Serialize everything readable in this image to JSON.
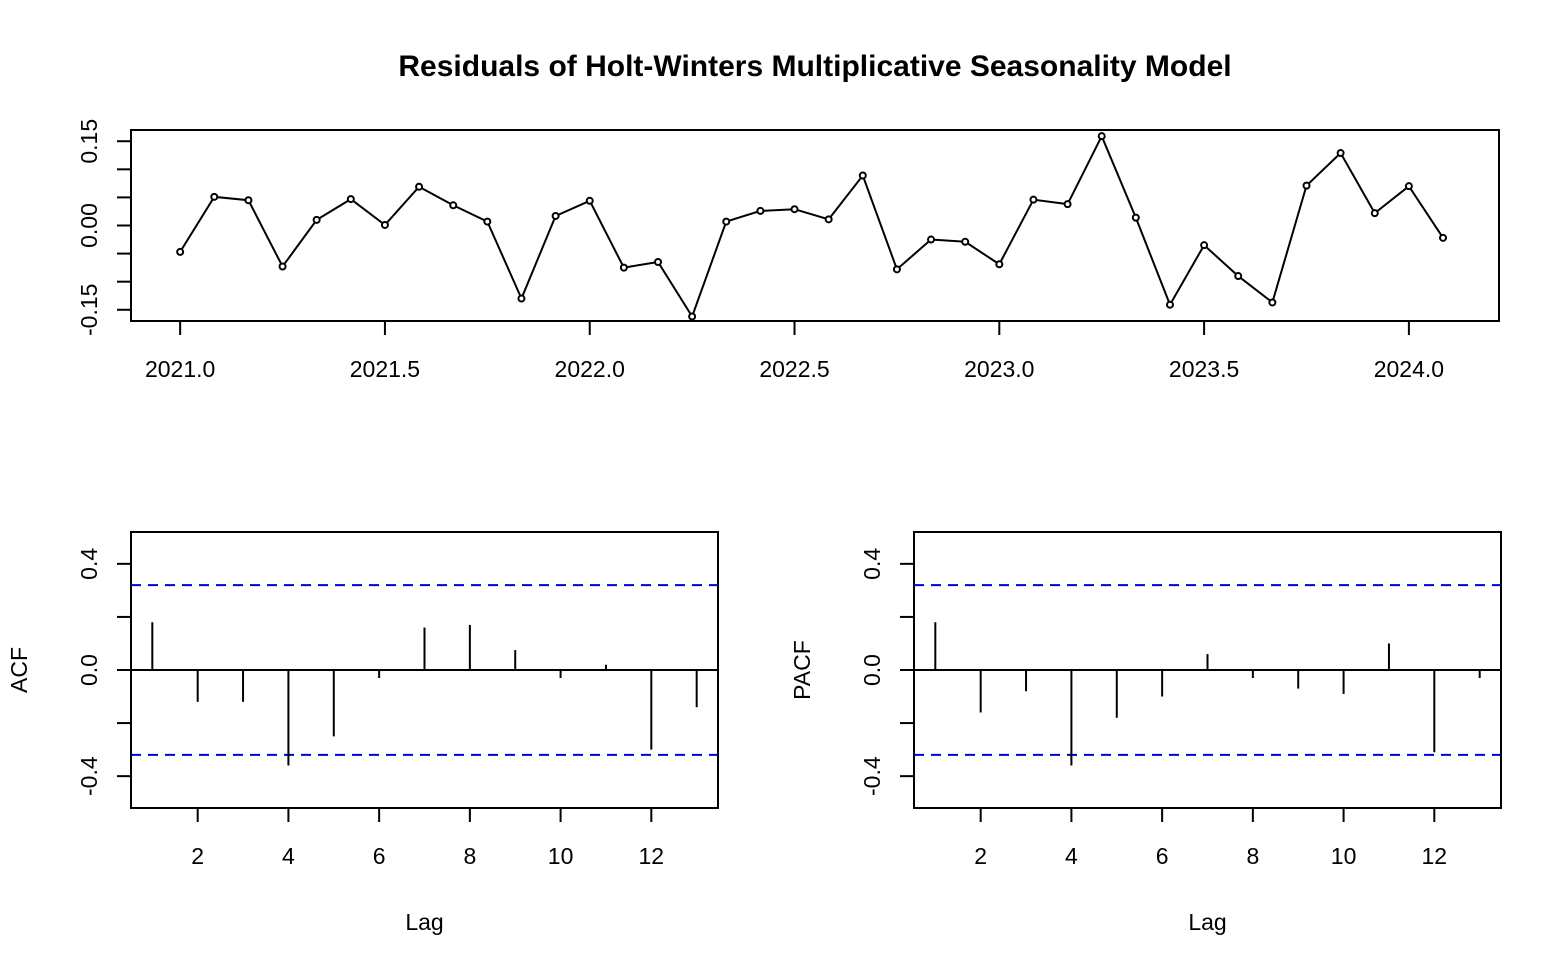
{
  "title": "Residuals of Holt-Winters Multiplicative Seasonality Model",
  "colors": {
    "line": "#000000",
    "ci": "#0000CD",
    "frame": "#000000",
    "background": "#ffffff"
  },
  "chart_data": [
    {
      "type": "line",
      "title": "Residuals of Holt-Winters Multiplicative Seasonality Model",
      "xlabel": "",
      "ylabel": "",
      "markers": "open-circle",
      "x": [
        2021.0,
        2021.0833,
        2021.1667,
        2021.25,
        2021.3333,
        2021.4167,
        2021.5,
        2021.5833,
        2021.6667,
        2021.75,
        2021.8333,
        2021.9167,
        2022.0,
        2022.0833,
        2022.1667,
        2022.25,
        2022.3333,
        2022.4167,
        2022.5,
        2022.5833,
        2022.6667,
        2022.75,
        2022.8333,
        2022.9167,
        2023.0,
        2023.0833,
        2023.1667,
        2023.25,
        2023.3333,
        2023.4167,
        2023.5,
        2023.5833,
        2023.6667,
        2023.75,
        2023.8333,
        2023.9167,
        2024.0,
        2024.0833
      ],
      "values": [
        -0.047,
        0.051,
        0.045,
        -0.073,
        0.01,
        0.047,
        0.001,
        0.069,
        0.036,
        0.007,
        -0.13,
        0.017,
        0.044,
        -0.075,
        -0.065,
        -0.162,
        0.007,
        0.026,
        0.029,
        0.011,
        0.089,
        -0.078,
        -0.025,
        -0.029,
        -0.069,
        0.046,
        0.038,
        0.159,
        0.014,
        -0.141,
        -0.035,
        -0.09,
        -0.137,
        0.071,
        0.129,
        0.022,
        0.07,
        -0.022
      ],
      "xlim": [
        2020.88,
        2024.22
      ],
      "ylim": [
        -0.17,
        0.17
      ],
      "xticks": [
        2021.0,
        2021.5,
        2022.0,
        2022.5,
        2023.0,
        2023.5,
        2024.0
      ],
      "xtick_labels": [
        "2021.0",
        "2021.5",
        "2022.0",
        "2022.5",
        "2023.0",
        "2023.5",
        "2024.0"
      ],
      "yticks": [
        -0.15,
        -0.1,
        -0.05,
        0.0,
        0.05,
        0.1,
        0.15
      ],
      "ytick_labels": [
        "-0.15",
        "",
        "",
        "0.00",
        "",
        "",
        "0.15"
      ],
      "grid": false
    },
    {
      "type": "bar",
      "style": "spike",
      "title": "",
      "xlabel": "Lag",
      "ylabel": "ACF",
      "lags": [
        1,
        2,
        3,
        4,
        5,
        6,
        7,
        8,
        9,
        10,
        11,
        12,
        13
      ],
      "values": [
        0.18,
        -0.12,
        -0.12,
        -0.36,
        -0.25,
        -0.03,
        0.16,
        0.17,
        0.075,
        -0.03,
        0.02,
        -0.3,
        -0.14
      ],
      "ci": [
        0.32,
        -0.32
      ],
      "xlim": [
        0.53,
        13.47
      ],
      "ylim": [
        -0.52,
        0.52
      ],
      "xticks": [
        2,
        4,
        6,
        8,
        10,
        12
      ],
      "xtick_labels": [
        "2",
        "4",
        "6",
        "8",
        "10",
        "12"
      ],
      "yticks": [
        -0.4,
        -0.2,
        0.0,
        0.2,
        0.4
      ],
      "ytick_labels": [
        "-0.4",
        "",
        "0.0",
        "",
        "0.4"
      ],
      "grid": false
    },
    {
      "type": "bar",
      "style": "spike",
      "title": "",
      "xlabel": "Lag",
      "ylabel": "PACF",
      "lags": [
        1,
        2,
        3,
        4,
        5,
        6,
        7,
        8,
        9,
        10,
        11,
        12,
        13
      ],
      "values": [
        0.18,
        -0.16,
        -0.08,
        -0.36,
        -0.18,
        -0.1,
        0.06,
        -0.03,
        -0.07,
        -0.09,
        0.1,
        -0.31,
        -0.03
      ],
      "ci": [
        0.32,
        -0.32
      ],
      "xlim": [
        0.53,
        13.47
      ],
      "ylim": [
        -0.52,
        0.52
      ],
      "xticks": [
        2,
        4,
        6,
        8,
        10,
        12
      ],
      "xtick_labels": [
        "2",
        "4",
        "6",
        "8",
        "10",
        "12"
      ],
      "yticks": [
        -0.4,
        -0.2,
        0.0,
        0.2,
        0.4
      ],
      "ytick_labels": [
        "-0.4",
        "",
        "0.0",
        "",
        "0.4"
      ],
      "grid": false
    }
  ]
}
